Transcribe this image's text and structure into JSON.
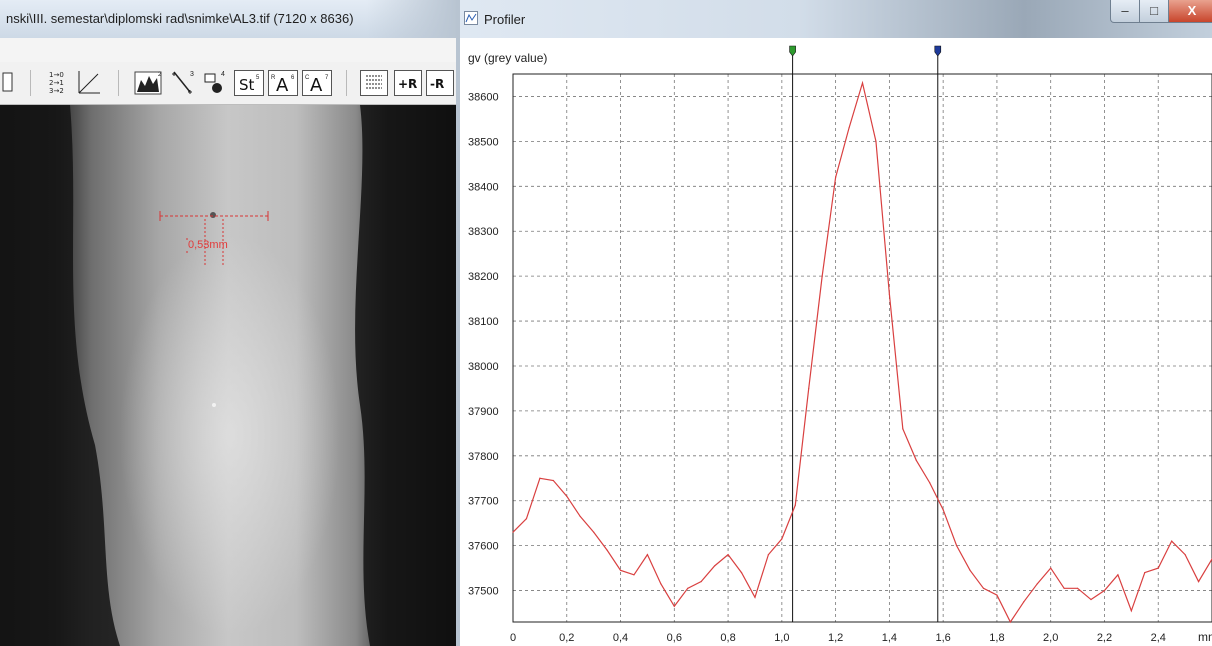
{
  "viewer": {
    "title": "nski\\III. semestar\\diplomski rad\\snimke\\AL3.tif (7120 x 8636)",
    "measurement_label": "0,53mm",
    "toolbar_icons": [
      "open-icon",
      "sort-icon",
      "line-tool-icon",
      "histogram-icon",
      "profile-tool-icon",
      "zoom-icon",
      "statistics-icon",
      "text-a-icon",
      "text-a-alt-icon",
      "list-icon",
      "add-roi-icon",
      "remove-roi-icon"
    ],
    "toolbar_text": {
      "sort": "1→0\n2→1\n3→2",
      "stat": "St",
      "a1": "A",
      "a2": "A",
      "plus": "+R",
      "minus": "-R"
    }
  },
  "profiler": {
    "title": "Profiler",
    "window_buttons": {
      "minimize": "–",
      "maximize": "□",
      "close": "X"
    }
  },
  "colors": {
    "profile_line": "#d94040",
    "grid": "#777777",
    "cursor_green": "#2e9b2e",
    "cursor_blue": "#1e3a9a"
  },
  "chart_data": {
    "type": "line",
    "ylabel": "gv (grey value)",
    "xlabel": "mm",
    "xlim": [
      0,
      2.6
    ],
    "ylim": [
      37430,
      38650
    ],
    "x_ticks": [
      0,
      0.2,
      0.4,
      0.6,
      0.8,
      1.0,
      1.2,
      1.4,
      1.6,
      1.8,
      2.0,
      2.2,
      2.4
    ],
    "x_tick_labels": [
      "0",
      "0,2",
      "0,4",
      "0,6",
      "0,8",
      "1,0",
      "1,2",
      "1,4",
      "1,6",
      "1,8",
      "2,0",
      "2,2",
      "2,4"
    ],
    "y_ticks": [
      37500,
      37600,
      37700,
      37800,
      37900,
      38000,
      38100,
      38200,
      38300,
      38400,
      38500,
      38600
    ],
    "y_tick_labels": [
      "37500",
      "37600",
      "37700",
      "37800",
      "37900",
      "38000",
      "38100",
      "38200",
      "38300",
      "38400",
      "38500",
      "38600"
    ],
    "grid": true,
    "cursors": [
      {
        "x": 1.04,
        "color": "#2e9b2e"
      },
      {
        "x": 1.58,
        "color": "#1e3a9a"
      }
    ],
    "x": [
      0,
      0.05,
      0.1,
      0.15,
      0.2,
      0.25,
      0.3,
      0.35,
      0.4,
      0.45,
      0.5,
      0.55,
      0.6,
      0.65,
      0.7,
      0.75,
      0.8,
      0.85,
      0.9,
      0.95,
      1.0,
      1.05,
      1.1,
      1.15,
      1.2,
      1.25,
      1.3,
      1.35,
      1.4,
      1.45,
      1.5,
      1.55,
      1.6,
      1.65,
      1.7,
      1.75,
      1.8,
      1.85,
      1.9,
      1.95,
      2.0,
      2.05,
      2.1,
      2.15,
      2.2,
      2.25,
      2.3,
      2.35,
      2.4,
      2.45,
      2.5,
      2.55,
      2.6
    ],
    "y": [
      37630,
      37660,
      37750,
      37745,
      37710,
      37665,
      37630,
      37590,
      37545,
      37535,
      37580,
      37515,
      37465,
      37505,
      37520,
      37555,
      37580,
      37540,
      37485,
      37580,
      37615,
      37690,
      37950,
      38200,
      38420,
      38530,
      38630,
      38500,
      38160,
      37860,
      37790,
      37740,
      37680,
      37600,
      37545,
      37505,
      37490,
      37430,
      37475,
      37515,
      37550,
      37505,
      37505,
      37480,
      37500,
      37535,
      37455,
      37540,
      37550,
      37610,
      37580,
      37520,
      37570
    ]
  }
}
